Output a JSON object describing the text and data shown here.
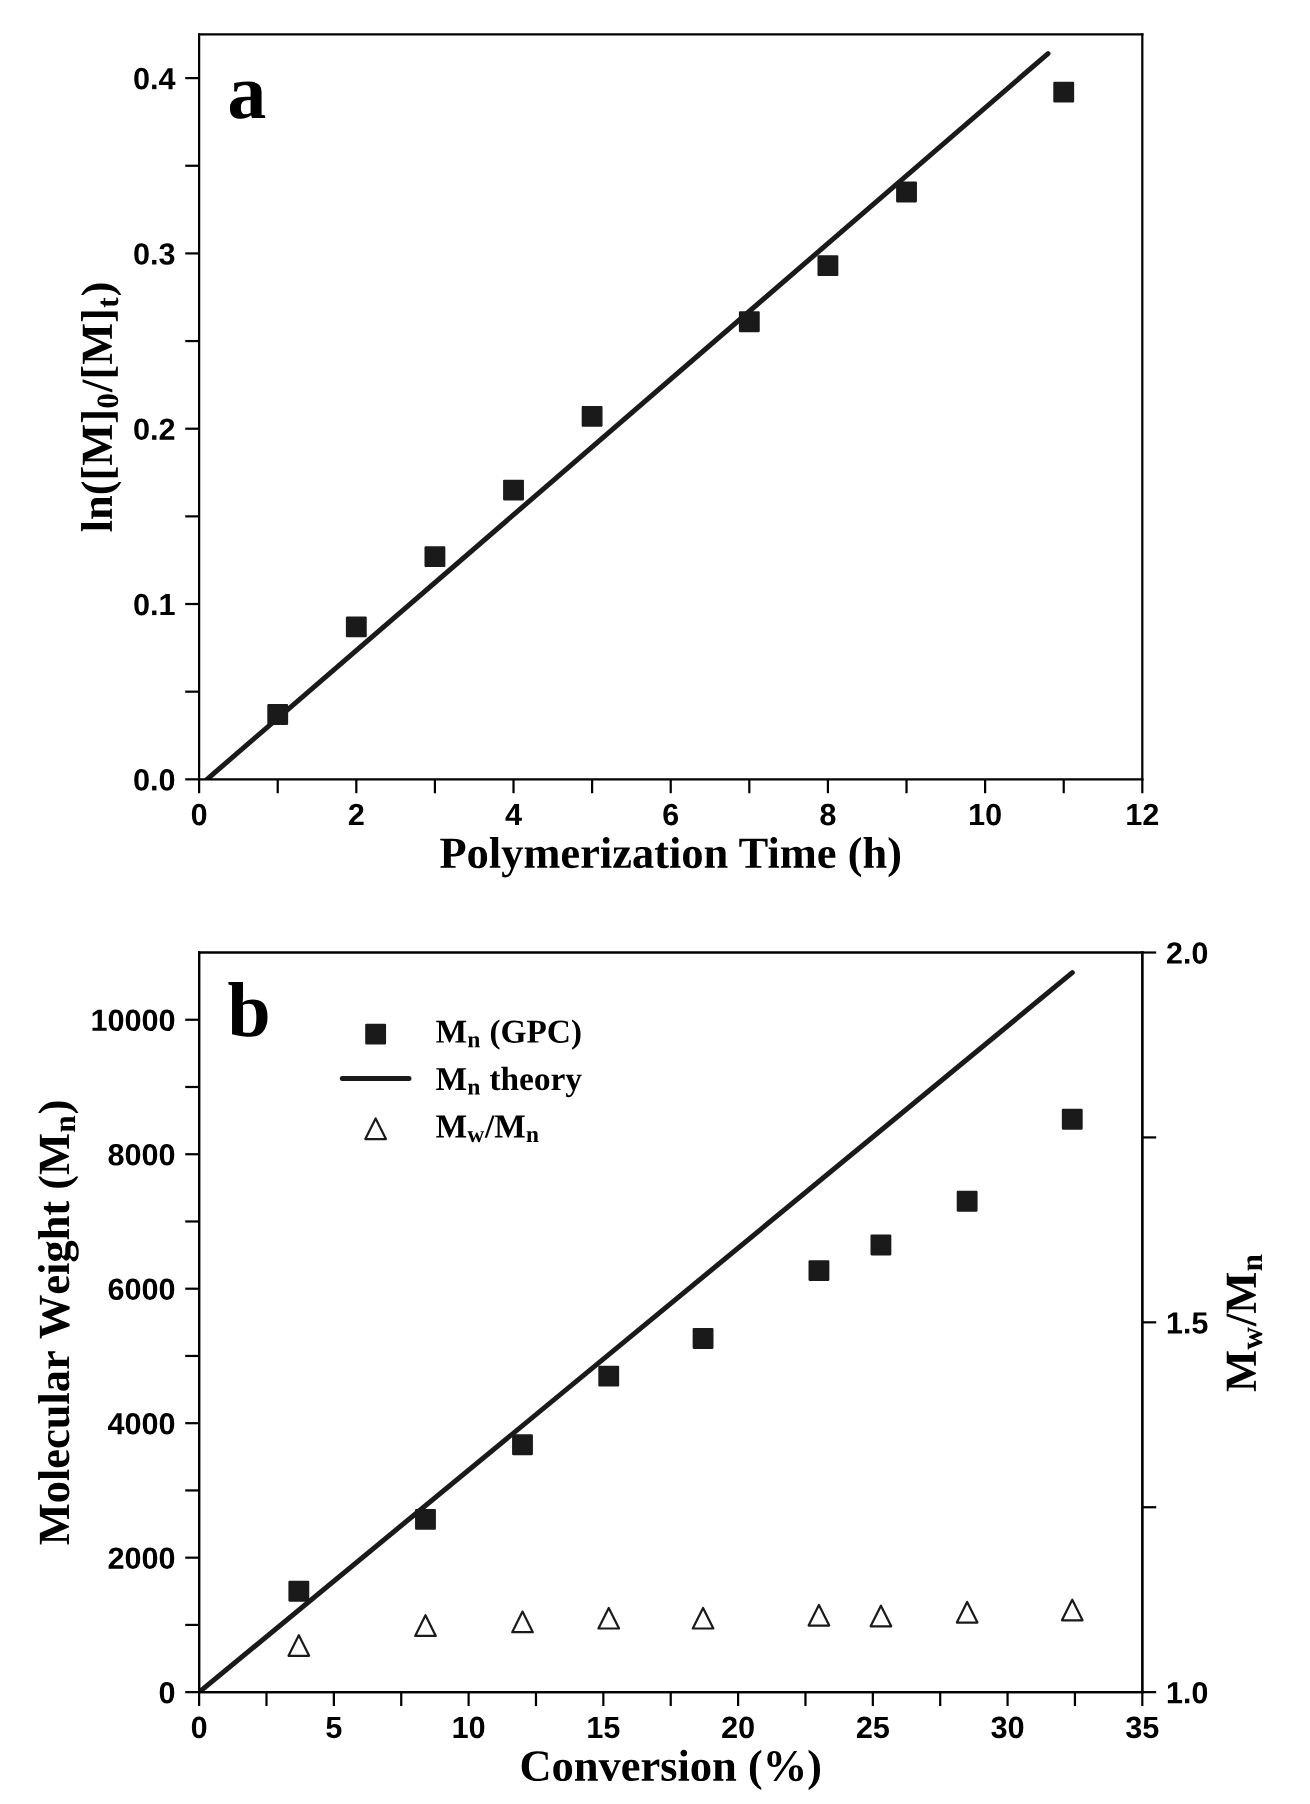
{
  "chart_data": [
    {
      "type": "scatter",
      "xlabel": "Polymerization Time (h)",
      "ylabel": "ln([M]$_{0}$/[M]$_{t}$)",
      "annotations": [
        "a"
      ],
      "xlim": [
        0,
        12
      ],
      "ylim": [
        0,
        0.425
      ],
      "xticks": [
        0,
        {
          "value": 1,
          "label": null
        },
        2,
        {
          "value": 3,
          "label": null
        },
        4,
        {
          "value": 5,
          "label": null
        },
        6,
        {
          "value": 7,
          "label": null
        },
        8,
        {
          "value": 9,
          "label": null
        },
        10,
        {
          "value": 11,
          "label": null
        },
        12
      ],
      "yticks": [
        {
          "value": 0,
          "label": "0.0"
        },
        {
          "value": 0.05,
          "label": null
        },
        0.1,
        {
          "value": 0.15,
          "label": null
        },
        0.2,
        {
          "value": 0.25,
          "label": null
        },
        0.3,
        {
          "value": 0.35,
          "label": null
        },
        0.4
      ],
      "grid": false,
      "legend": false,
      "series": [
        {
          "marker": "square",
          "color": "#1a1a1a",
          "x": [
            1,
            2,
            3,
            4,
            5,
            7,
            8,
            9,
            11
          ],
          "values": [
            0.037,
            0.087,
            0.127,
            0.165,
            0.207,
            0.261,
            0.293,
            0.335,
            0.392
          ]
        },
        {
          "type": "line",
          "marker": "none",
          "color": "#1a1a1a",
          "x": [
            0.1,
            10.8
          ],
          "values": [
            0,
            0.414
          ]
        }
      ]
    },
    {
      "type": "scatter",
      "xlabel": "Conversion (%)",
      "ylabel": "Molecular Weight (M$_{n}$)",
      "y2label": "M$_{w}$/M$_{n}$",
      "annotations": [
        "b"
      ],
      "xlim": [
        0,
        35
      ],
      "ylim": [
        0,
        11000
      ],
      "y2lim": [
        1.0,
        2.0
      ],
      "xticks": [
        0,
        {
          "value": 2.5,
          "label": null
        },
        5,
        {
          "value": 7.5,
          "label": null
        },
        10,
        {
          "value": 12.5,
          "label": null
        },
        15,
        {
          "value": 17.5,
          "label": null
        },
        20,
        {
          "value": 22.5,
          "label": null
        },
        25,
        {
          "value": 27.5,
          "label": null
        },
        30,
        {
          "value": 32.5,
          "label": null
        },
        35
      ],
      "yticks": [
        0,
        {
          "value": 1000,
          "label": null
        },
        2000,
        {
          "value": 3000,
          "label": null
        },
        4000,
        {
          "value": 5000,
          "label": null
        },
        6000,
        {
          "value": 7000,
          "label": null
        },
        8000,
        {
          "value": 9000,
          "label": null
        },
        10000
      ],
      "y2ticks": [
        {
          "value": 1.0,
          "label": "1.0"
        },
        {
          "value": 1.25,
          "label": null
        },
        1.5,
        {
          "value": 1.75,
          "label": null
        },
        {
          "value": 2.0,
          "label": "2.0"
        }
      ],
      "grid": false,
      "legend": "top left",
      "series": [
        {
          "name": "M$_{n}$ (GPC)",
          "marker": "square",
          "color": "#1a1a1a",
          "x": [
            3.7,
            8.4,
            12,
            15.2,
            18.7,
            23,
            25.3,
            28.5,
            32.4
          ],
          "values": [
            1500,
            2570,
            3680,
            4700,
            5260,
            6270,
            6650,
            7300,
            8520
          ]
        },
        {
          "type": "line",
          "name": "M$_{n}$ theory",
          "marker": "none",
          "color": "#1a1a1a",
          "x": [
            0,
            32.4
          ],
          "values": [
            0,
            10700
          ]
        },
        {
          "name": "M$_{w}$/M$_{n}$",
          "marker": "triangle",
          "color": "#1a1a1a",
          "axis": "y2",
          "x": [
            3.7,
            8.4,
            12,
            15.2,
            18.7,
            23,
            25.3,
            28.5,
            32.4
          ],
          "values": [
            1.063,
            1.09,
            1.095,
            1.1,
            1.1,
            1.104,
            1.103,
            1.108,
            1.111
          ]
        }
      ]
    }
  ]
}
